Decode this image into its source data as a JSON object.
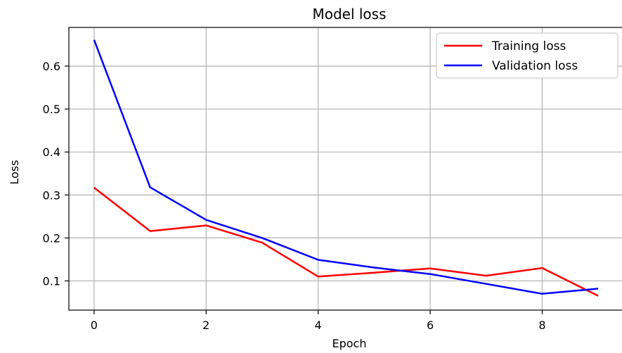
{
  "chart_data": {
    "type": "line",
    "title": "Model loss",
    "xlabel": "Epoch",
    "ylabel": "Loss",
    "xlim": [
      -0.45,
      9.45
    ],
    "ylim": [
      0.032,
      0.69
    ],
    "xticks": [
      0,
      2,
      4,
      6,
      8
    ],
    "yticks": [
      0.1,
      0.2,
      0.3,
      0.4,
      0.5,
      0.6
    ],
    "grid": true,
    "legend_position": "top-right",
    "x": [
      0,
      1,
      2,
      3,
      4,
      5,
      6,
      7,
      8,
      9
    ],
    "series": [
      {
        "name": "Training loss",
        "color": "#ff0000",
        "values": [
          0.317,
          0.216,
          0.229,
          0.189,
          0.11,
          0.119,
          0.129,
          0.112,
          0.13,
          0.065
        ]
      },
      {
        "name": "Validation loss",
        "color": "#0000ff",
        "values": [
          0.661,
          0.318,
          0.242,
          0.2,
          0.149,
          0.131,
          0.116,
          0.093,
          0.07,
          0.082
        ]
      }
    ]
  }
}
